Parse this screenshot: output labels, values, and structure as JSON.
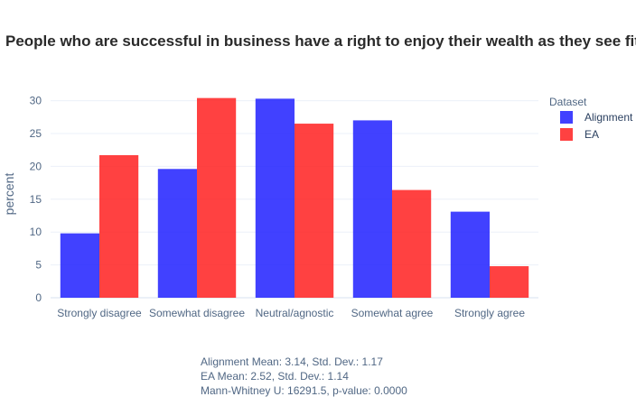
{
  "chart_data": {
    "type": "bar",
    "title": "People who are successful in business have a right to enjoy their wealth as they see fit",
    "xlabel": "",
    "ylabel": "percent",
    "ylim": [
      0,
      32
    ],
    "yticks": [
      0,
      5,
      10,
      15,
      20,
      25,
      30
    ],
    "grid": true,
    "categories": [
      "Strongly disagree",
      "Somewhat disagree",
      "Neutral/agnostic",
      "Somewhat agree",
      "Strongly agree"
    ],
    "series": [
      {
        "name": "Alignment",
        "color": "#2020ff",
        "values": [
          9.8,
          19.6,
          30.3,
          27.0,
          13.1
        ]
      },
      {
        "name": "EA",
        "color": "#ff2020",
        "values": [
          21.7,
          30.4,
          26.5,
          16.4,
          4.8
        ]
      }
    ],
    "legend": {
      "title": "Dataset",
      "placement": "right"
    },
    "annotations": [
      "Alignment Mean: 3.14, Std. Dev.: 1.17",
      "EA Mean: 2.52, Std. Dev.: 1.14",
      "Mann-Whitney U: 16291.5, p-value: 0.0000"
    ]
  }
}
